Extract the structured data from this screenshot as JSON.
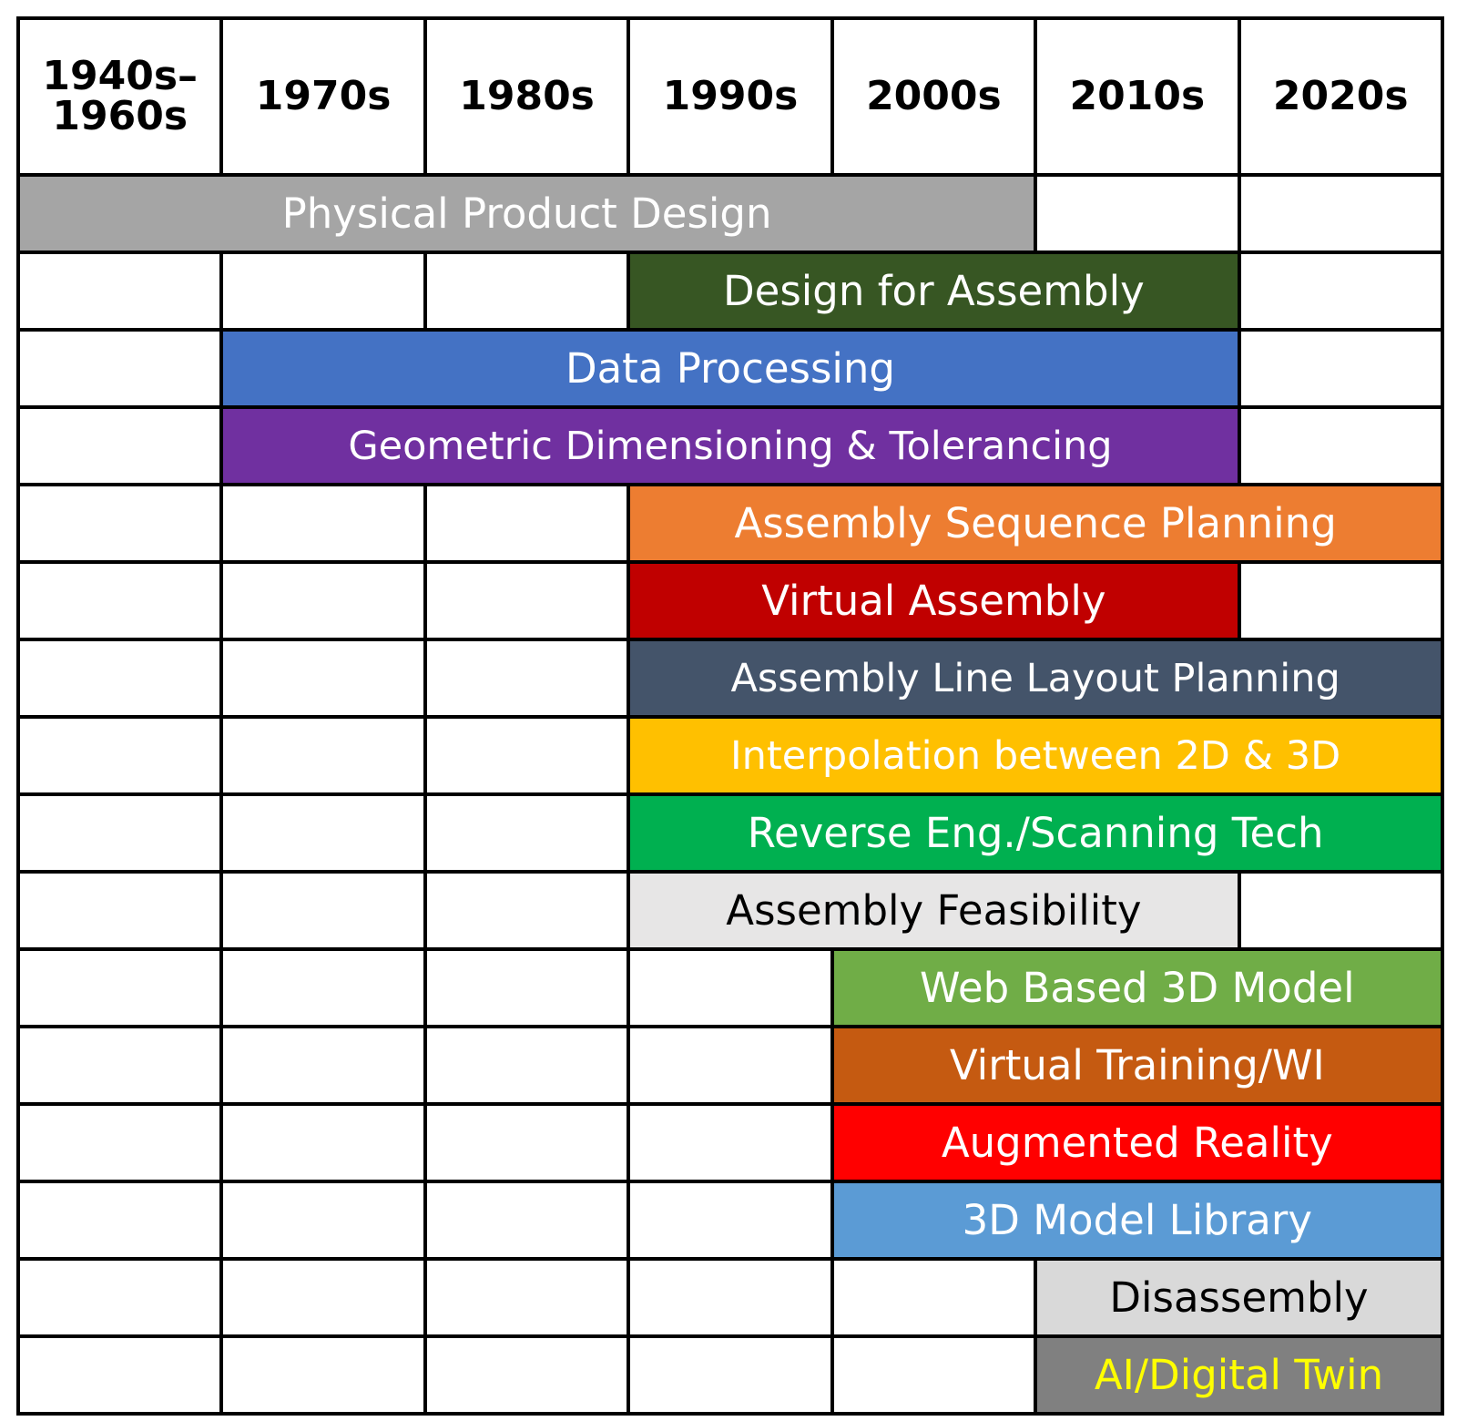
{
  "decades": [
    {
      "lines": [
        "1940s–",
        "1960s"
      ]
    },
    {
      "lines": [
        "1970s"
      ]
    },
    {
      "lines": [
        "1980s"
      ]
    },
    {
      "lines": [
        "1990s"
      ]
    },
    {
      "lines": [
        "2000s"
      ]
    },
    {
      "lines": [
        "2010s"
      ]
    },
    {
      "lines": [
        "2020s"
      ]
    }
  ],
  "technologies": [
    {
      "label": "Physical Product Design",
      "start": 0,
      "end": 4,
      "bg": "#a5a5a5",
      "fg": "#ffffff"
    },
    {
      "label": "Design for Assembly",
      "start": 3,
      "end": 5,
      "bg": "#375623",
      "fg": "#ffffff"
    },
    {
      "label": "Data Processing",
      "start": 1,
      "end": 5,
      "bg": "#4472c4",
      "fg": "#ffffff"
    },
    {
      "label": "Geometric Dimensioning & Tolerancing",
      "start": 1,
      "end": 5,
      "bg": "#7030a0",
      "fg": "#ffffff",
      "long": true
    },
    {
      "label": "Assembly Sequence Planning",
      "start": 3,
      "end": 6,
      "bg": "#ed7d31",
      "fg": "#ffffff"
    },
    {
      "label": "Virtual Assembly",
      "start": 3,
      "end": 5,
      "bg": "#c00000",
      "fg": "#ffffff"
    },
    {
      "label": "Assembly Line Layout Planning",
      "start": 3,
      "end": 6,
      "bg": "#44546a",
      "fg": "#ffffff",
      "long": true
    },
    {
      "label": "Interpolation between 2D & 3D",
      "start": 3,
      "end": 6,
      "bg": "#ffc000",
      "fg": "#ffffff",
      "long": true
    },
    {
      "label": "Reverse Eng./Scanning Tech",
      "start": 3,
      "end": 6,
      "bg": "#00b050",
      "fg": "#ffffff"
    },
    {
      "label": "Assembly Feasibility",
      "start": 3,
      "end": 5,
      "bg": "#e7e6e6",
      "fg": "#000000"
    },
    {
      "label": "Web Based 3D Model",
      "start": 4,
      "end": 6,
      "bg": "#70ad47",
      "fg": "#ffffff"
    },
    {
      "label": "Virtual Training/WI",
      "start": 4,
      "end": 6,
      "bg": "#c55a11",
      "fg": "#ffffff"
    },
    {
      "label": "Augmented Reality",
      "start": 4,
      "end": 6,
      "bg": "#ff0000",
      "fg": "#ffffff"
    },
    {
      "label": "3D Model Library",
      "start": 4,
      "end": 6,
      "bg": "#5b9bd5",
      "fg": "#ffffff"
    },
    {
      "label": "Disassembly",
      "start": 5,
      "end": 6,
      "bg": "#d9d9d9",
      "fg": "#000000"
    },
    {
      "label": "AI/Digital Twin",
      "start": 5,
      "end": 6,
      "bg": "#808080",
      "fg": "#ffff00"
    }
  ]
}
